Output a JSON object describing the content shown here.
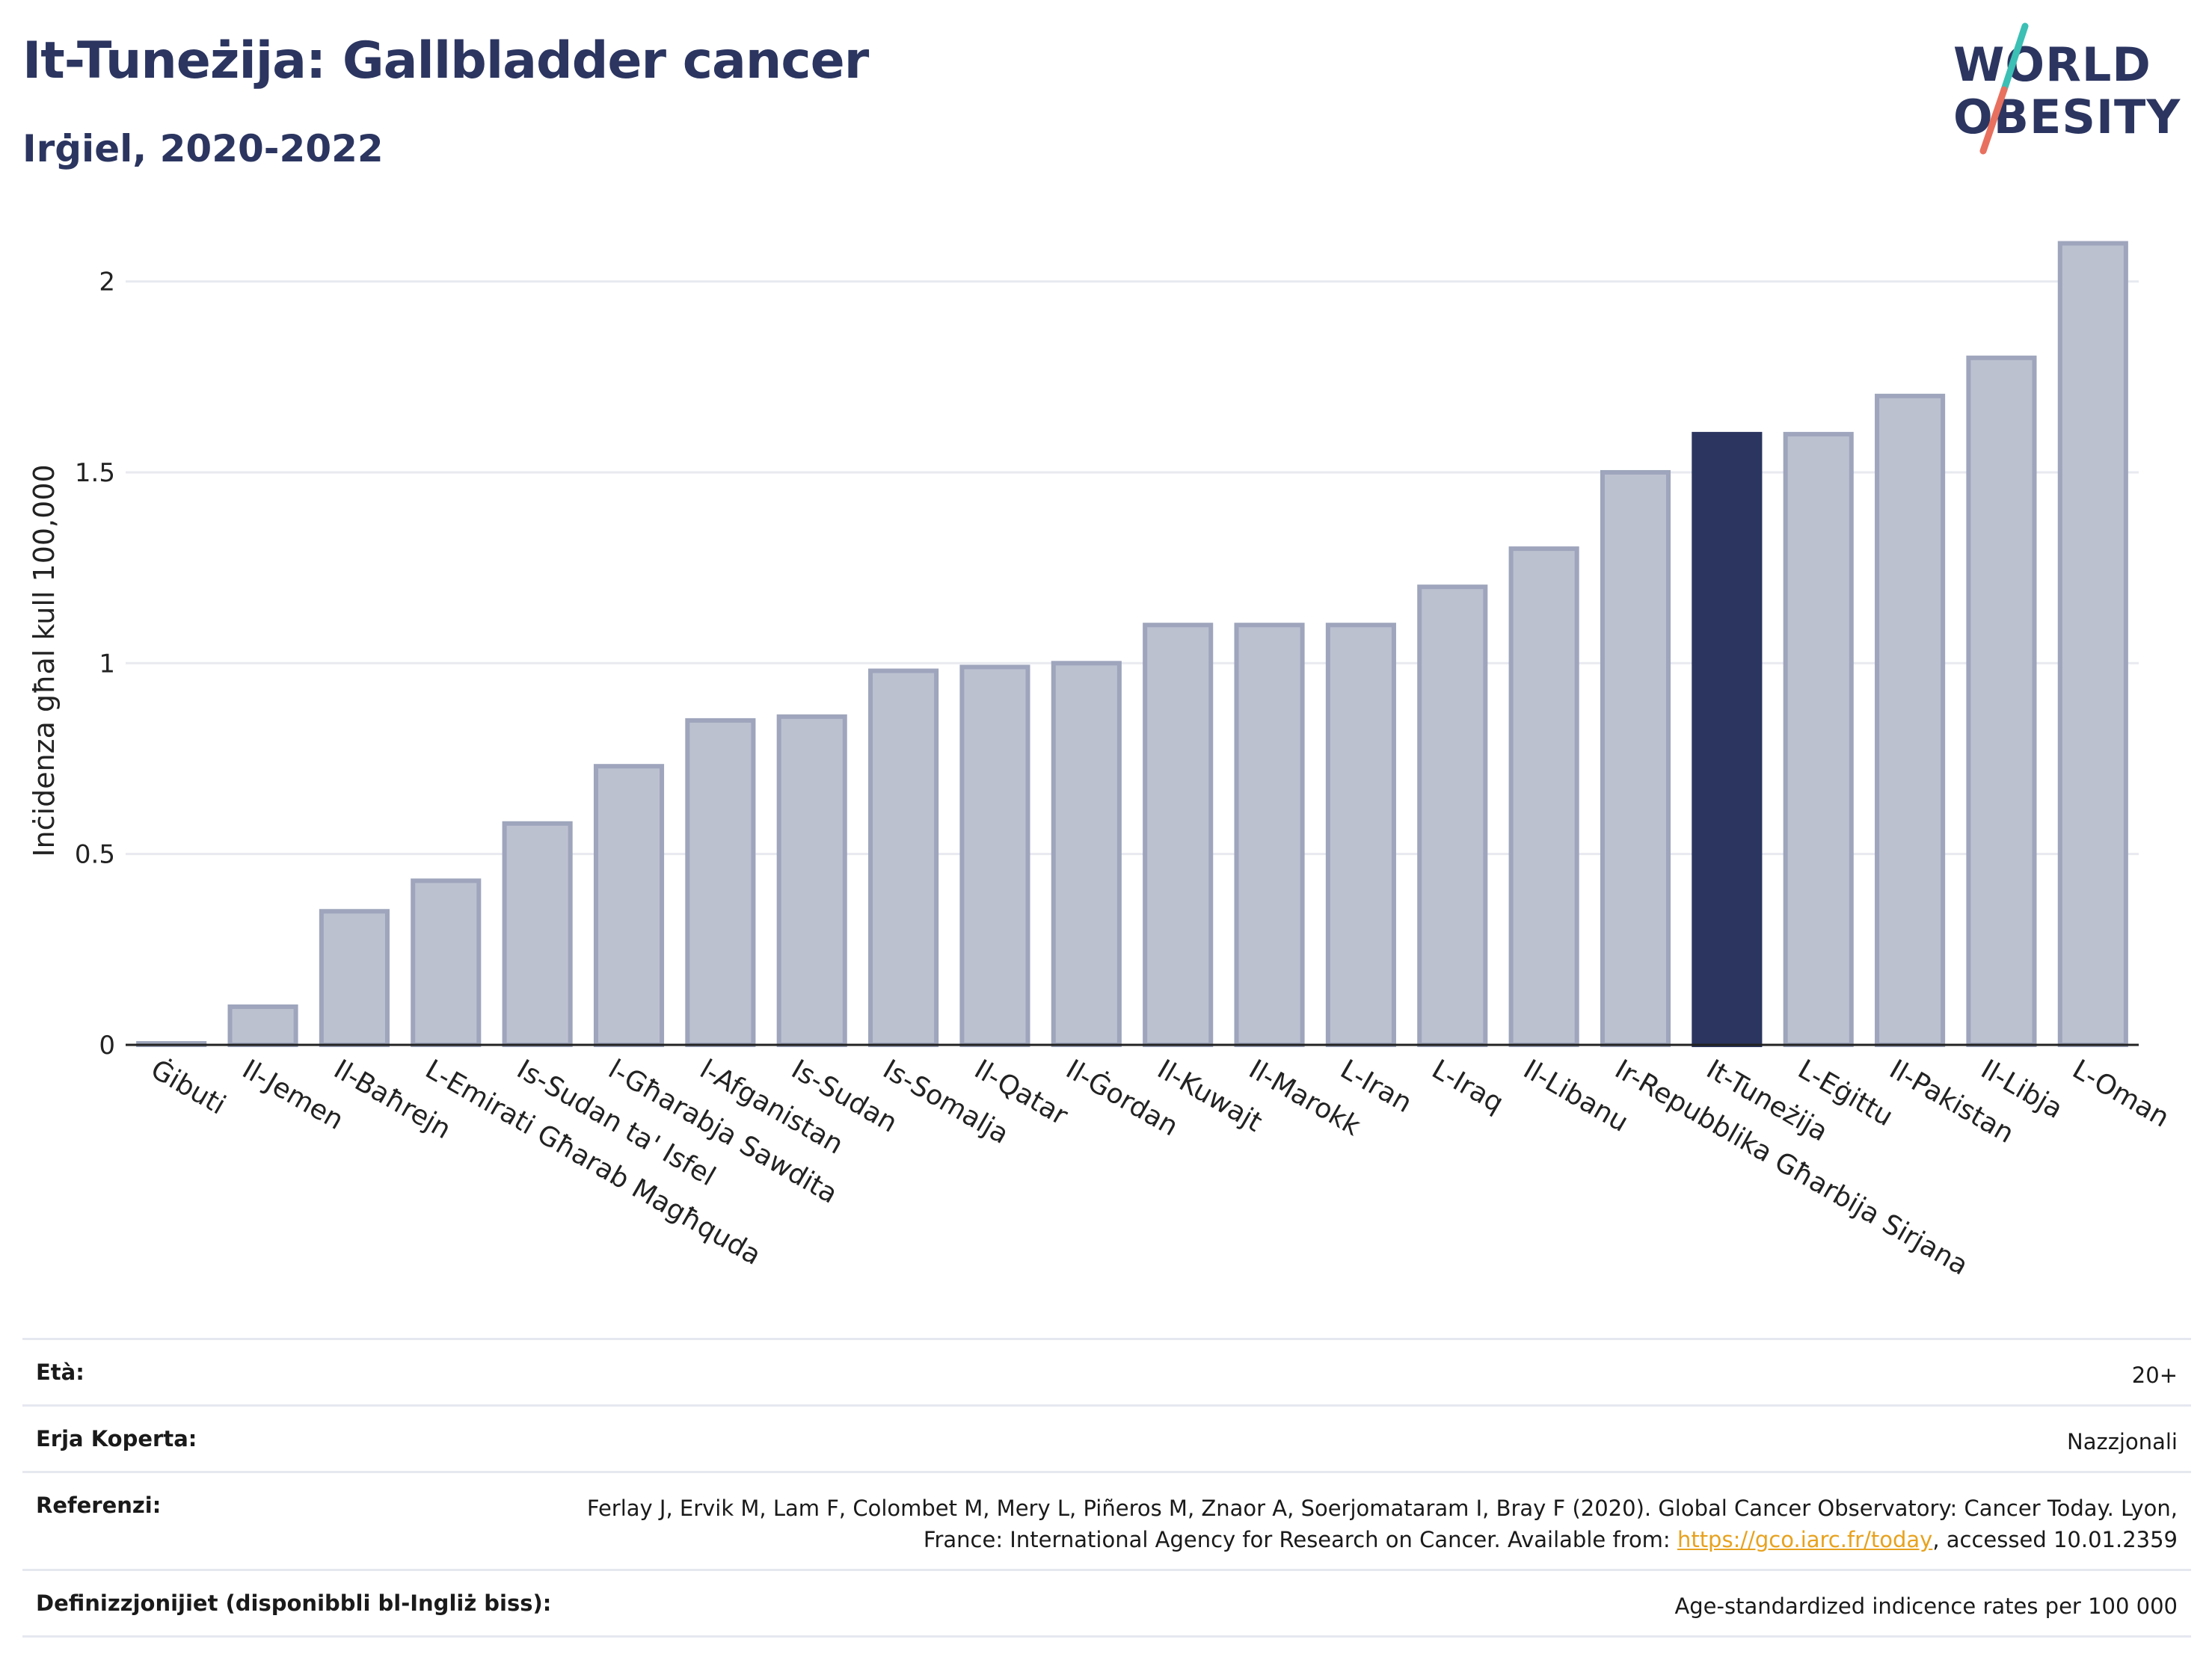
{
  "header": {
    "title": "It-Tuneżija: Gallbladder cancer",
    "subtitle": "Irġiel, 2020-2022"
  },
  "logo": {
    "line1": "WORLD",
    "line2": "OBESITY",
    "colors": {
      "text": "#2b3560",
      "slash_top": "#3cbfb4",
      "slash_bottom": "#e8705f"
    }
  },
  "chart_data": {
    "type": "bar",
    "title": "It-Tuneżija: Gallbladder cancer",
    "subtitle": "Irġiel, 2020-2022",
    "xlabel": "",
    "ylabel": "Inċidenza għal kull 100,000",
    "ylim": [
      0,
      2.15
    ],
    "yticks": [
      0,
      0.5,
      1,
      1.5,
      2
    ],
    "ytick_labels": [
      "0",
      "0.5",
      "1",
      "1.5",
      "2"
    ],
    "grid": true,
    "categories": [
      "Ġibuti",
      "Il-Jemen",
      "Il-Baħrejn",
      "L-Emirati Għarab Magħquda",
      "Is-Sudan ta' Isfel",
      "l-Għarabja Sawdita",
      "l-Afganistan",
      "Is-Sudan",
      "Is-Somalja",
      "Il-Qatar",
      "Il-Ġordan",
      "Il-Kuwajt",
      "Il-Marokk",
      "L-Iran",
      "L-Iraq",
      "Il-Libanu",
      "Ir-Repubblika Għarbija Sirjana",
      "It-Tuneżija",
      "L-Eġittu",
      "Il-Pakistan",
      "Il-Libja",
      "L-Oman"
    ],
    "values": [
      0.0,
      0.1,
      0.35,
      0.43,
      0.58,
      0.73,
      0.85,
      0.86,
      0.98,
      0.99,
      1.0,
      1.1,
      1.1,
      1.1,
      1.2,
      1.3,
      1.5,
      1.6,
      1.6,
      1.7,
      1.8,
      2.1
    ],
    "highlight": "It-Tuneżija",
    "colors": {
      "bar": "#bcc1d0",
      "bar_edge": "#9ea5bc",
      "highlight": "#2b3560",
      "grid": "#e8eaf0",
      "axis": "#222222"
    }
  },
  "info": [
    {
      "label": "Età:",
      "value": "20+"
    },
    {
      "label": "Erja Koperta:",
      "value": "Nazzjonali"
    },
    {
      "label": "Referenzi:",
      "value_part1": "Ferlay J, Ervik M, Lam F, Colombet M, Mery L, Piñeros M, Znaor A, Soerjomataram I, Bray F (2020). Global Cancer Observatory: Cancer Today. Lyon, France: International Agency for Research on Cancer. Available from: ",
      "link": "https://gco.iarc.fr/today",
      "value_part2": ", accessed 10.01.2359"
    },
    {
      "label": "Definizzjonijiet (disponibbli bl-Ingliż biss):",
      "value": "Age-standardized indicence rates per 100 000"
    }
  ]
}
